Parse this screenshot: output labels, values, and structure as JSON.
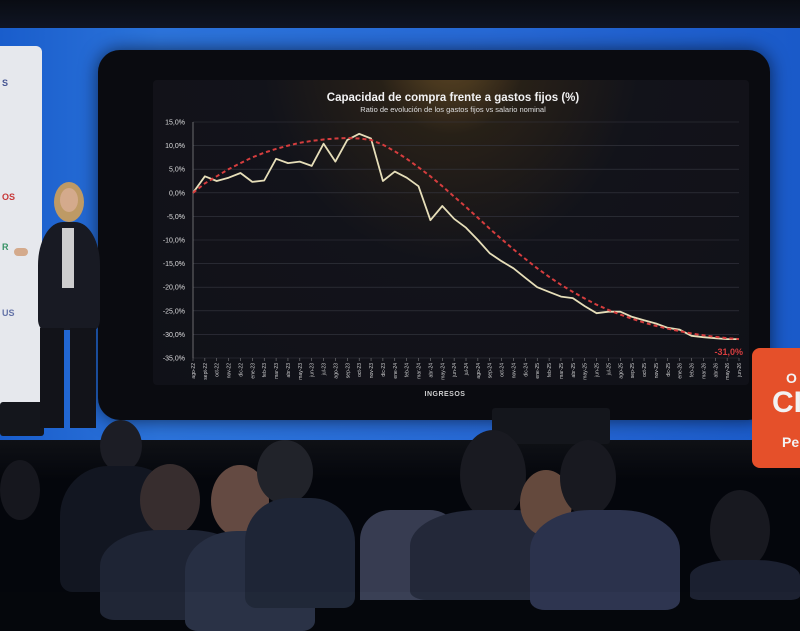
{
  "screen": {
    "footer_label": "INGRESOS"
  },
  "left_panel": {
    "fragments": [
      "S",
      "OS",
      "R",
      "US"
    ]
  },
  "logo": {
    "big_text": "CI",
    "small_text": "Pe",
    "ring": "O"
  },
  "chart_data": {
    "type": "line",
    "title": "Capacidad de compra frente a gastos fijos (%)",
    "subtitle": "Ratio de evolución de los gastos fijos vs salario nominal",
    "xlabel": "",
    "ylabel": "",
    "ylim": [
      -35,
      15
    ],
    "yticks": [
      "15,0%",
      "10,0%",
      "5,0%",
      "0,0%",
      "-5,0%",
      "-10,0%",
      "-15,0%",
      "-20,0%",
      "-25,0%",
      "-30,0%",
      "-35,0%"
    ],
    "grid": true,
    "categories": [
      "ago-22",
      "sept-22",
      "oct-22",
      "nov-22",
      "dic-22",
      "ene-23",
      "feb-23",
      "mar-23",
      "abr-23",
      "may-23",
      "jun-23",
      "jul-23",
      "ago-23",
      "sep-23",
      "oct-23",
      "nov-23",
      "dic-23",
      "ene-24",
      "feb-24",
      "mar-24",
      "abr-24",
      "may-24",
      "jun-24",
      "jul-24",
      "ago-24",
      "sep-24",
      "oct-24",
      "nov-24",
      "dic-24",
      "ene-25",
      "feb-25",
      "mar-25",
      "abr-25",
      "may-25",
      "jun-25",
      "jul-25",
      "ago-25",
      "sep-25",
      "oct-25",
      "nov-25",
      "dic-25",
      "ene-26",
      "feb-26",
      "mar-26",
      "abr-26",
      "may-26",
      "jun-26"
    ],
    "series": [
      {
        "name": "",
        "color": "#f3eac2",
        "style": "solid",
        "values": [
          0.0,
          3.5,
          2.5,
          3.2,
          4.2,
          2.3,
          2.6,
          7.2,
          6.3,
          6.6,
          5.7,
          10.4,
          6.6,
          11.2,
          12.5,
          11.5,
          2.5,
          4.5,
          3.2,
          1.4,
          -5.8,
          -2.8,
          -5.5,
          -7.4,
          -10.0,
          -12.8,
          -14.5,
          -16.0,
          -18.0,
          -20.0,
          -21.0,
          -22.0,
          -22.3,
          -24.0,
          -25.5,
          -25.2,
          -25.2,
          -26.3,
          -27.0,
          -27.7,
          -28.6,
          -29.0,
          -30.3,
          -30.6,
          -30.8,
          -31.0,
          -31.0
        ]
      },
      {
        "name": "",
        "color": "#e24141",
        "style": "dashed",
        "values": [
          0.0,
          2.0,
          3.5,
          5.0,
          6.3,
          7.5,
          8.5,
          9.3,
          10.0,
          10.6,
          11.0,
          11.3,
          11.5,
          11.6,
          11.5,
          11.2,
          10.2,
          8.8,
          7.2,
          5.4,
          3.5,
          1.4,
          -0.8,
          -3.0,
          -5.3,
          -7.6,
          -9.8,
          -12.0,
          -14.0,
          -16.0,
          -17.8,
          -19.5,
          -21.0,
          -22.4,
          -23.7,
          -24.8,
          -25.8,
          -26.7,
          -27.5,
          -28.2,
          -28.8,
          -29.3,
          -29.8,
          -30.2,
          -30.5,
          -30.8,
          -31.0
        ]
      }
    ],
    "annotations": [
      {
        "text": "-31,0%",
        "at_category": "jun-26",
        "value": -31.0,
        "color": "#e24141"
      }
    ]
  }
}
